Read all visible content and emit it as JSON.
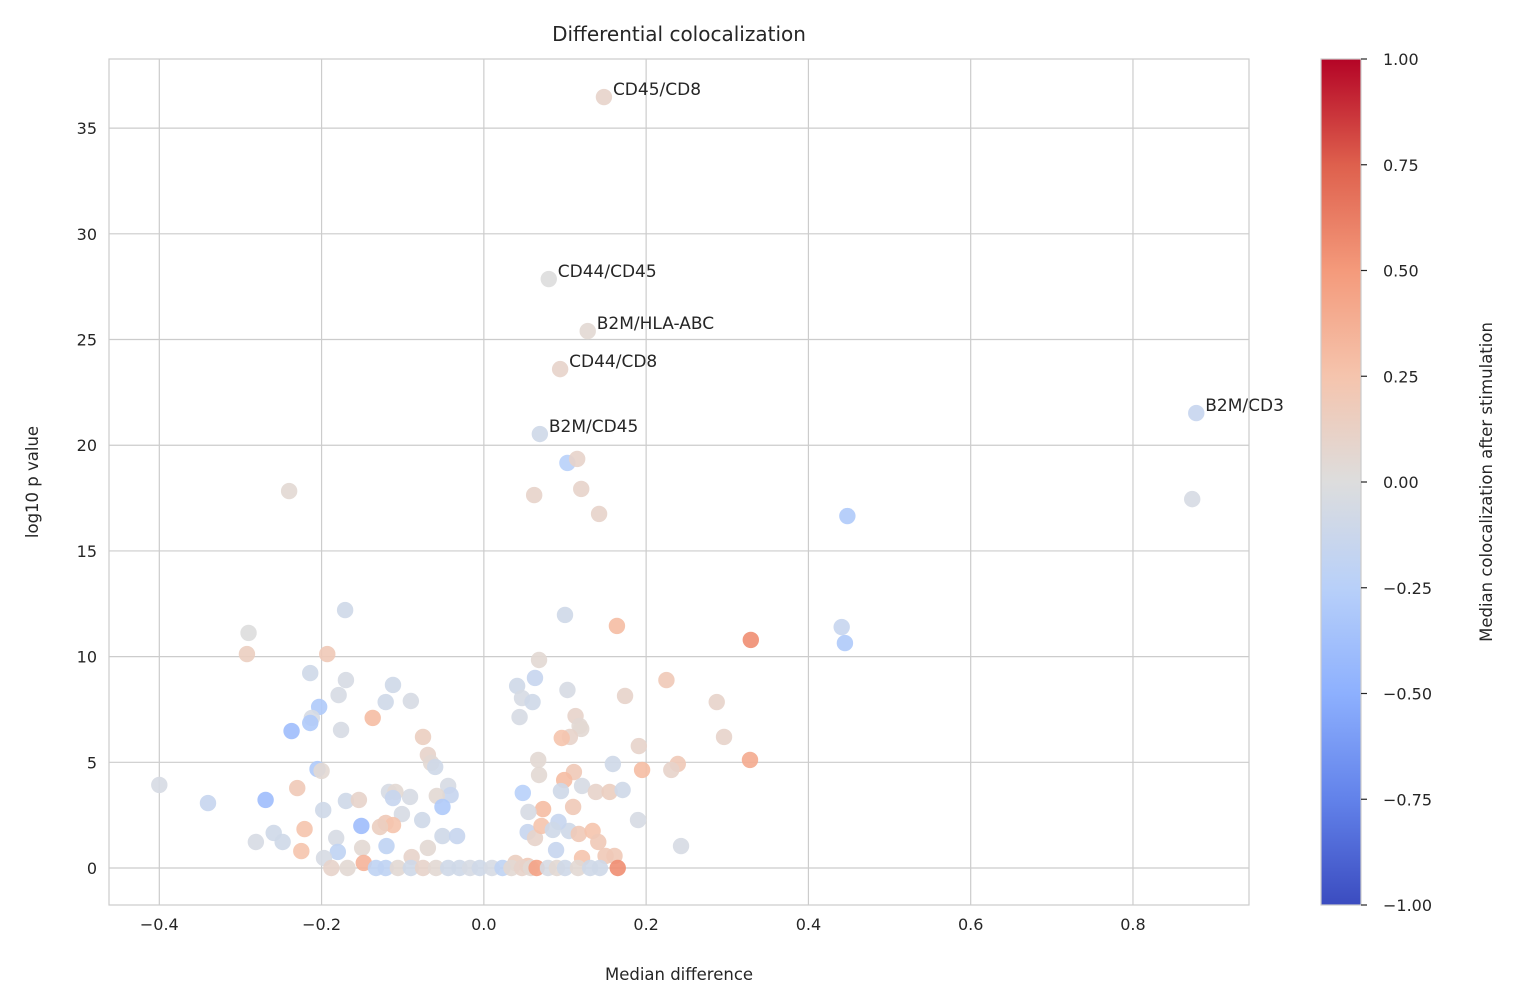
{
  "chart_data": {
    "type": "scatter",
    "title": "Differential colocalization",
    "xlabel": "Median difference",
    "ylabel": "log10 p value",
    "xlim": [
      -0.462,
      0.943
    ],
    "ylim": [
      -1.75,
      38.27
    ],
    "xticks": [
      -0.4,
      -0.2,
      0.0,
      0.2,
      0.4,
      0.6,
      0.8
    ],
    "xtick_labels": [
      "−0.4",
      "−0.2",
      "0.0",
      "0.2",
      "0.4",
      "0.6",
      "0.8"
    ],
    "yticks": [
      0,
      5,
      10,
      15,
      20,
      25,
      30,
      35
    ],
    "ytick_labels": [
      "0",
      "5",
      "10",
      "15",
      "20",
      "25",
      "30",
      "35"
    ],
    "grid": true,
    "colormap": "coolwarm",
    "colorbar": {
      "label": "Median colocalization after stimulation",
      "range": [
        -1,
        1
      ],
      "ticks": [
        -1,
        -0.75,
        -0.5,
        -0.25,
        0,
        0.25,
        0.5,
        0.75,
        1
      ],
      "tick_labels": [
        "−1.00",
        "−0.75",
        "−0.50",
        "−0.25",
        "0.00",
        "0.25",
        "0.50",
        "0.75",
        "1.00"
      ]
    },
    "annotations": [
      {
        "label": "CD45/CD8",
        "x": 0.148,
        "y": 36.47,
        "c": 0.1
      },
      {
        "label": "CD44/CD45",
        "x": 0.08,
        "y": 27.86,
        "c": 0.0
      },
      {
        "label": "B2M/HLA-ABC",
        "x": 0.128,
        "y": 25.4,
        "c": 0.05
      },
      {
        "label": "CD44/CD8",
        "x": 0.094,
        "y": 23.6,
        "c": 0.1
      },
      {
        "label": "B2M/CD45",
        "x": 0.069,
        "y": 20.53,
        "c": -0.1
      },
      {
        "label": "B2M/CD3",
        "x": 0.878,
        "y": 21.52,
        "c": -0.15
      }
    ],
    "points": [
      {
        "x": 0.103,
        "y": 19.16,
        "c": -0.25
      },
      {
        "x": 0.115,
        "y": 19.35,
        "c": 0.1
      },
      {
        "x": -0.24,
        "y": 17.83,
        "c": 0.05
      },
      {
        "x": 0.062,
        "y": 17.64,
        "c": 0.1
      },
      {
        "x": 0.12,
        "y": 17.93,
        "c": 0.1
      },
      {
        "x": 0.142,
        "y": 16.75,
        "c": 0.1
      },
      {
        "x": 0.448,
        "y": 16.65,
        "c": -0.3
      },
      {
        "x": 0.873,
        "y": 17.45,
        "c": -0.05
      },
      {
        "x": -0.171,
        "y": 12.2,
        "c": -0.1
      },
      {
        "x": 0.1,
        "y": 11.97,
        "c": -0.1
      },
      {
        "x": 0.164,
        "y": 11.45,
        "c": 0.3
      },
      {
        "x": -0.29,
        "y": 11.12,
        "c": 0.0
      },
      {
        "x": -0.292,
        "y": 10.12,
        "c": 0.15
      },
      {
        "x": -0.193,
        "y": 10.12,
        "c": 0.2
      },
      {
        "x": 0.329,
        "y": 10.79,
        "c": 0.55
      },
      {
        "x": 0.441,
        "y": 11.4,
        "c": -0.15
      },
      {
        "x": 0.445,
        "y": 10.64,
        "c": -0.3
      },
      {
        "x": 0.068,
        "y": 9.84,
        "c": 0.05
      },
      {
        "x": -0.17,
        "y": 8.89,
        "c": -0.05
      },
      {
        "x": -0.214,
        "y": 9.22,
        "c": -0.1
      },
      {
        "x": 0.041,
        "y": 8.61,
        "c": -0.1
      },
      {
        "x": 0.063,
        "y": 8.99,
        "c": -0.15
      },
      {
        "x": -0.112,
        "y": 8.66,
        "c": -0.1
      },
      {
        "x": -0.179,
        "y": 8.18,
        "c": -0.05
      },
      {
        "x": 0.103,
        "y": 8.42,
        "c": -0.05
      },
      {
        "x": 0.225,
        "y": 8.89,
        "c": 0.2
      },
      {
        "x": 0.174,
        "y": 8.14,
        "c": 0.1
      },
      {
        "x": -0.121,
        "y": 7.85,
        "c": -0.1
      },
      {
        "x": -0.09,
        "y": 7.9,
        "c": -0.05
      },
      {
        "x": 0.047,
        "y": 8.04,
        "c": -0.05
      },
      {
        "x": 0.06,
        "y": 7.85,
        "c": -0.1
      },
      {
        "x": -0.203,
        "y": 7.62,
        "c": -0.3
      },
      {
        "x": -0.212,
        "y": 7.1,
        "c": -0.05
      },
      {
        "x": -0.214,
        "y": 6.86,
        "c": -0.3
      },
      {
        "x": 0.044,
        "y": 7.14,
        "c": -0.05
      },
      {
        "x": 0.287,
        "y": 7.85,
        "c": 0.1
      },
      {
        "x": -0.137,
        "y": 7.1,
        "c": 0.3
      },
      {
        "x": -0.237,
        "y": 6.48,
        "c": -0.4
      },
      {
        "x": -0.176,
        "y": 6.53,
        "c": -0.05
      },
      {
        "x": 0.113,
        "y": 7.19,
        "c": 0.1
      },
      {
        "x": 0.118,
        "y": 6.72,
        "c": 0.05
      },
      {
        "x": 0.12,
        "y": 6.58,
        "c": 0.05
      },
      {
        "x": 0.106,
        "y": 6.2,
        "c": 0.1
      },
      {
        "x": 0.096,
        "y": 6.15,
        "c": 0.25
      },
      {
        "x": -0.075,
        "y": 6.2,
        "c": 0.15
      },
      {
        "x": 0.296,
        "y": 6.2,
        "c": 0.1
      },
      {
        "x": 0.191,
        "y": 5.77,
        "c": 0.1
      },
      {
        "x": -0.069,
        "y": 5.35,
        "c": 0.1
      },
      {
        "x": -0.065,
        "y": 4.97,
        "c": 0.05
      },
      {
        "x": -0.06,
        "y": 4.78,
        "c": -0.1
      },
      {
        "x": 0.067,
        "y": 5.11,
        "c": 0.05
      },
      {
        "x": 0.159,
        "y": 4.92,
        "c": -0.1
      },
      {
        "x": 0.239,
        "y": 4.92,
        "c": 0.2
      },
      {
        "x": 0.231,
        "y": 4.64,
        "c": 0.1
      },
      {
        "x": 0.195,
        "y": 4.64,
        "c": 0.3
      },
      {
        "x": 0.328,
        "y": 5.11,
        "c": 0.4
      },
      {
        "x": -0.205,
        "y": 4.68,
        "c": -0.3
      },
      {
        "x": -0.2,
        "y": 4.59,
        "c": 0.05
      },
      {
        "x": 0.068,
        "y": 4.4,
        "c": 0.05
      },
      {
        "x": 0.111,
        "y": 4.54,
        "c": 0.2
      },
      {
        "x": 0.099,
        "y": 4.16,
        "c": 0.3
      },
      {
        "x": -0.4,
        "y": 3.93,
        "c": -0.05
      },
      {
        "x": -0.23,
        "y": 3.78,
        "c": 0.2
      },
      {
        "x": -0.044,
        "y": 3.88,
        "c": -0.05
      },
      {
        "x": -0.041,
        "y": 3.45,
        "c": -0.15
      },
      {
        "x": -0.058,
        "y": 3.41,
        "c": 0.05
      },
      {
        "x": -0.091,
        "y": 3.36,
        "c": -0.05
      },
      {
        "x": -0.117,
        "y": 3.6,
        "c": -0.05
      },
      {
        "x": -0.109,
        "y": 3.6,
        "c": 0.05
      },
      {
        "x": -0.112,
        "y": 3.31,
        "c": -0.15
      },
      {
        "x": -0.17,
        "y": 3.17,
        "c": -0.1
      },
      {
        "x": -0.154,
        "y": 3.22,
        "c": 0.1
      },
      {
        "x": 0.048,
        "y": 3.55,
        "c": -0.25
      },
      {
        "x": 0.095,
        "y": 3.64,
        "c": -0.1
      },
      {
        "x": 0.121,
        "y": 3.88,
        "c": -0.05
      },
      {
        "x": 0.138,
        "y": 3.6,
        "c": 0.1
      },
      {
        "x": 0.155,
        "y": 3.6,
        "c": 0.15
      },
      {
        "x": 0.171,
        "y": 3.69,
        "c": -0.1
      },
      {
        "x": -0.269,
        "y": 3.22,
        "c": -0.4
      },
      {
        "x": -0.34,
        "y": 3.07,
        "c": -0.15
      },
      {
        "x": -0.198,
        "y": 2.74,
        "c": -0.1
      },
      {
        "x": -0.101,
        "y": 2.55,
        "c": -0.05
      },
      {
        "x": -0.051,
        "y": 2.89,
        "c": -0.3
      },
      {
        "x": 0.073,
        "y": 2.79,
        "c": 0.3
      },
      {
        "x": 0.11,
        "y": 2.89,
        "c": 0.2
      },
      {
        "x": 0.055,
        "y": 2.65,
        "c": -0.05
      },
      {
        "x": 0.19,
        "y": 2.27,
        "c": -0.05
      },
      {
        "x": -0.076,
        "y": 2.27,
        "c": -0.1
      },
      {
        "x": -0.151,
        "y": 1.99,
        "c": -0.4
      },
      {
        "x": -0.121,
        "y": 2.13,
        "c": 0.2
      },
      {
        "x": -0.112,
        "y": 2.03,
        "c": 0.25
      },
      {
        "x": -0.128,
        "y": 1.94,
        "c": 0.15
      },
      {
        "x": -0.221,
        "y": 1.84,
        "c": 0.25
      },
      {
        "x": -0.259,
        "y": 1.66,
        "c": -0.1
      },
      {
        "x": -0.182,
        "y": 1.42,
        "c": -0.05
      },
      {
        "x": -0.248,
        "y": 1.23,
        "c": -0.1
      },
      {
        "x": -0.281,
        "y": 1.23,
        "c": -0.05
      },
      {
        "x": -0.051,
        "y": 1.51,
        "c": -0.1
      },
      {
        "x": -0.033,
        "y": 1.51,
        "c": -0.15
      },
      {
        "x": 0.054,
        "y": 1.7,
        "c": -0.15
      },
      {
        "x": 0.105,
        "y": 1.75,
        "c": -0.1
      },
      {
        "x": 0.117,
        "y": 1.61,
        "c": 0.2
      },
      {
        "x": 0.134,
        "y": 1.75,
        "c": 0.25
      },
      {
        "x": 0.141,
        "y": 1.23,
        "c": 0.2
      },
      {
        "x": 0.063,
        "y": 1.42,
        "c": 0.1
      },
      {
        "x": 0.071,
        "y": 1.99,
        "c": 0.25
      },
      {
        "x": 0.092,
        "y": 2.18,
        "c": -0.15
      },
      {
        "x": 0.085,
        "y": 1.8,
        "c": -0.1
      },
      {
        "x": 0.243,
        "y": 1.04,
        "c": -0.05
      },
      {
        "x": -0.225,
        "y": 0.8,
        "c": 0.25
      },
      {
        "x": -0.069,
        "y": 0.95,
        "c": 0.05
      },
      {
        "x": -0.15,
        "y": 0.95,
        "c": 0.05
      },
      {
        "x": -0.18,
        "y": 0.76,
        "c": -0.2
      },
      {
        "x": -0.12,
        "y": 1.04,
        "c": -0.2
      },
      {
        "x": 0.089,
        "y": 0.85,
        "c": -0.15
      },
      {
        "x": -0.197,
        "y": 0.47,
        "c": -0.05
      },
      {
        "x": -0.089,
        "y": 0.52,
        "c": 0.1
      },
      {
        "x": 0.15,
        "y": 0.57,
        "c": 0.2
      },
      {
        "x": 0.161,
        "y": 0.57,
        "c": 0.2
      },
      {
        "x": 0.121,
        "y": 0.47,
        "c": 0.25
      },
      {
        "x": -0.148,
        "y": 0.24,
        "c": 0.35
      },
      {
        "x": 0.039,
        "y": 0.24,
        "c": 0.15
      },
      {
        "x": 0.054,
        "y": 0.1,
        "c": 0.2
      },
      {
        "x": -0.188,
        "y": 0,
        "c": 0.1
      },
      {
        "x": -0.168,
        "y": 0,
        "c": 0.05
      },
      {
        "x": -0.133,
        "y": 0,
        "c": -0.2
      },
      {
        "x": -0.121,
        "y": 0,
        "c": -0.2
      },
      {
        "x": -0.106,
        "y": 0,
        "c": 0.05
      },
      {
        "x": -0.09,
        "y": 0,
        "c": -0.1
      },
      {
        "x": -0.075,
        "y": 0,
        "c": 0.1
      },
      {
        "x": -0.059,
        "y": 0,
        "c": 0.05
      },
      {
        "x": -0.044,
        "y": 0,
        "c": -0.1
      },
      {
        "x": -0.03,
        "y": 0,
        "c": -0.1
      },
      {
        "x": -0.017,
        "y": 0,
        "c": -0.05
      },
      {
        "x": -0.005,
        "y": 0,
        "c": -0.1
      },
      {
        "x": 0.01,
        "y": 0,
        "c": -0.05
      },
      {
        "x": 0.023,
        "y": 0,
        "c": -0.2
      },
      {
        "x": 0.034,
        "y": 0,
        "c": 0.05
      },
      {
        "x": 0.047,
        "y": 0,
        "c": 0.1
      },
      {
        "x": 0.058,
        "y": 0,
        "c": 0.05
      },
      {
        "x": 0.065,
        "y": 0,
        "c": 0.45
      },
      {
        "x": 0.079,
        "y": 0,
        "c": -0.05
      },
      {
        "x": 0.09,
        "y": 0,
        "c": 0.05
      },
      {
        "x": 0.1,
        "y": 0,
        "c": -0.1
      },
      {
        "x": 0.116,
        "y": 0,
        "c": 0.05
      },
      {
        "x": 0.131,
        "y": 0,
        "c": -0.1
      },
      {
        "x": 0.143,
        "y": 0,
        "c": -0.1
      },
      {
        "x": 0.165,
        "y": 0,
        "c": 0.55
      }
    ]
  }
}
